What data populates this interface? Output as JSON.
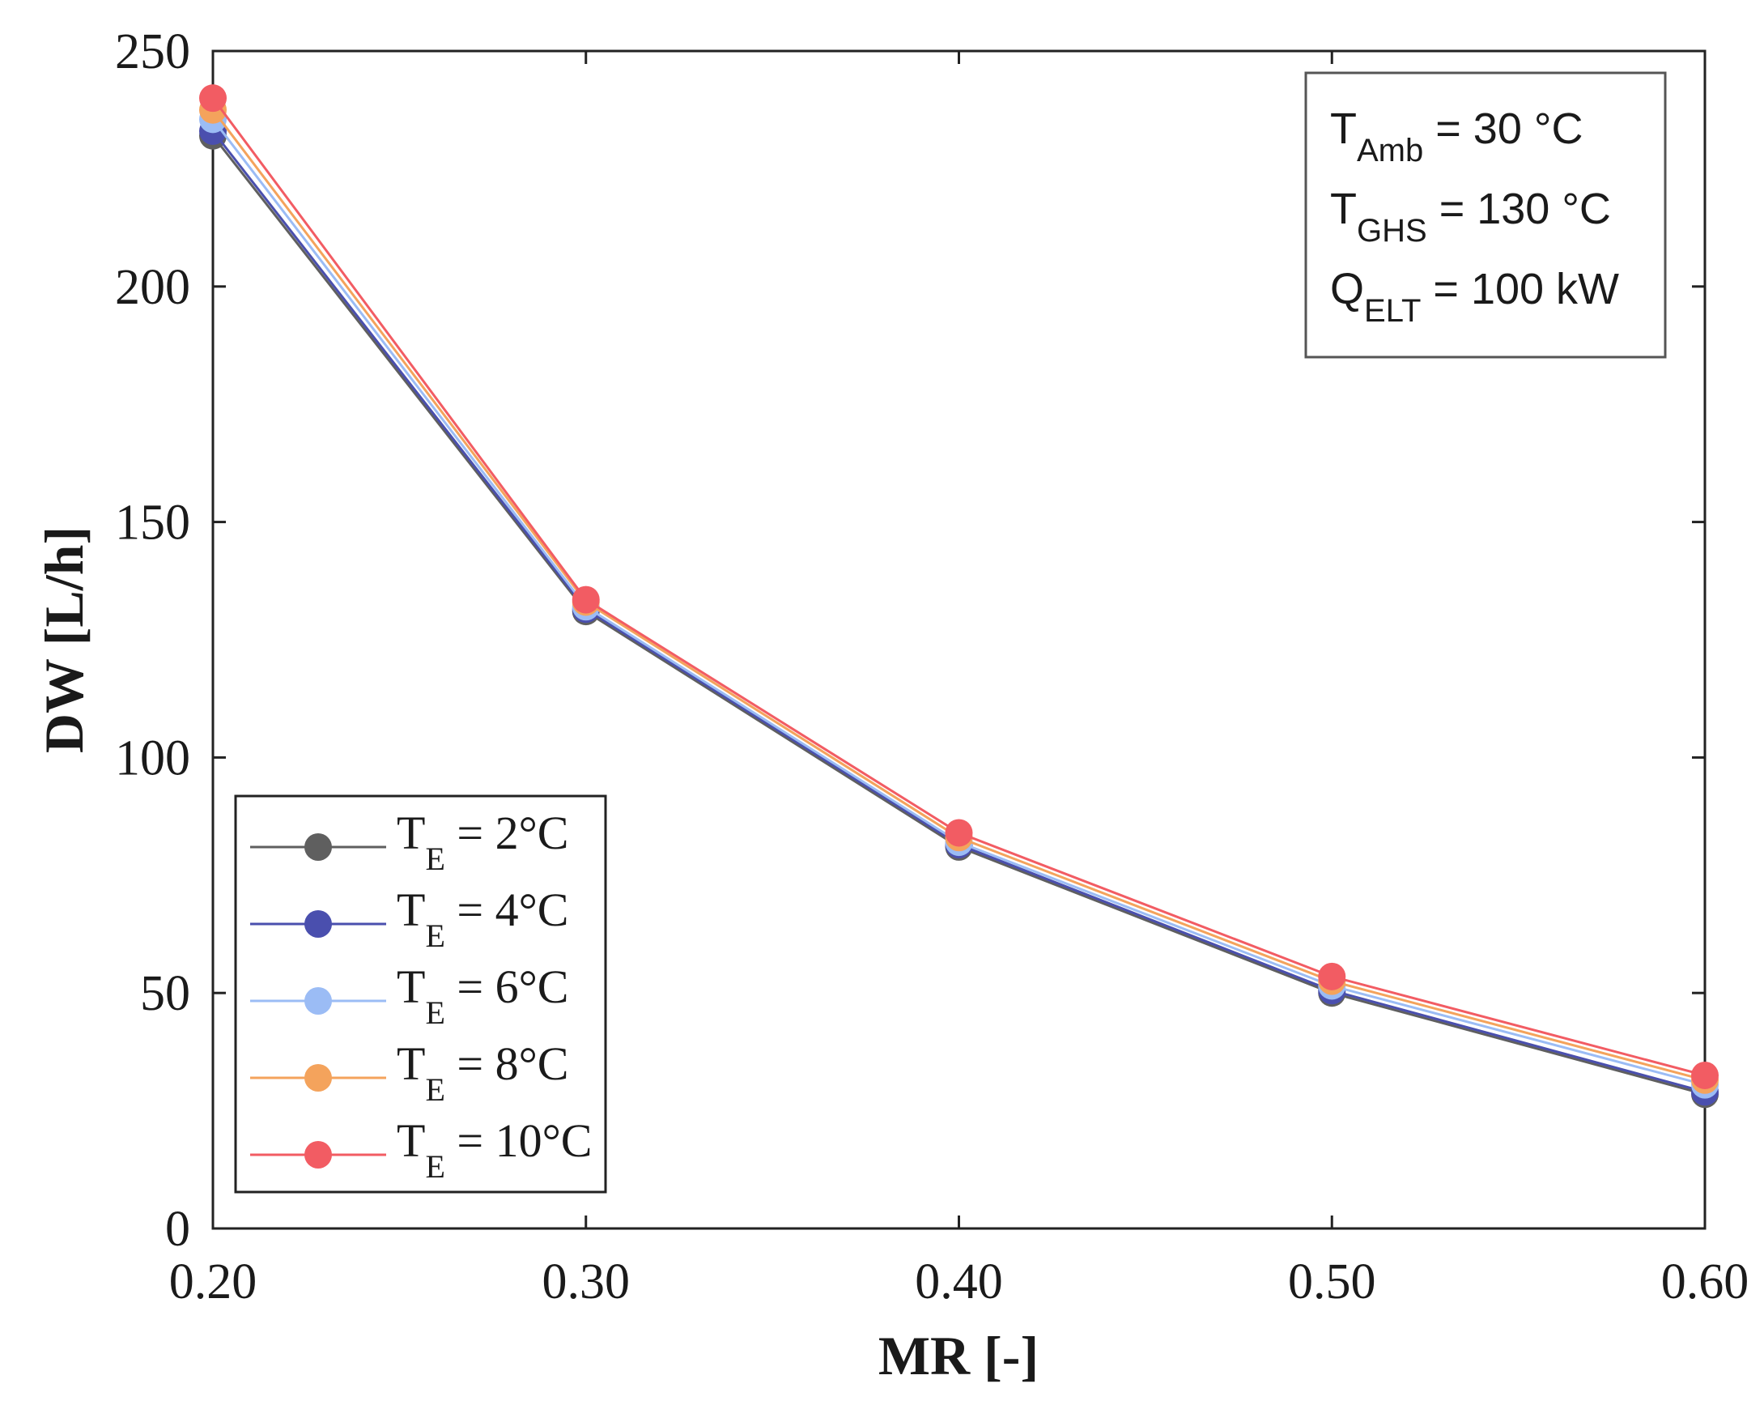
{
  "chart_data": {
    "type": "line",
    "xlabel": "MR [-]",
    "ylabel": "DW [L/h]",
    "x": [
      0.2,
      0.3,
      0.4,
      0.5,
      0.6
    ],
    "x_tick_labels": [
      "0.20",
      "0.30",
      "0.40",
      "0.50",
      "0.60"
    ],
    "xlim": [
      0.2,
      0.6
    ],
    "y_ticks": [
      0,
      50,
      100,
      150,
      200,
      250
    ],
    "y_tick_labels": [
      "0",
      "50",
      "100",
      "150",
      "200",
      "250"
    ],
    "ylim": [
      0,
      250
    ],
    "grid": false,
    "legend_position": "bottom-left",
    "series": [
      {
        "name": "TE = 2°C",
        "label_main": "T",
        "label_sub": "E",
        "label_rest": " = 2°C",
        "color": "#5f5f5f",
        "values": [
          232,
          131,
          81,
          50,
          28.5
        ]
      },
      {
        "name": "TE = 4°C",
        "label_main": "T",
        "label_sub": "E",
        "label_rest": " = 4°C",
        "color": "#4a4fae",
        "values": [
          233,
          131.5,
          81.5,
          50.5,
          29
        ]
      },
      {
        "name": "TE = 6°C",
        "label_main": "T",
        "label_sub": "E",
        "label_rest": " = 6°C",
        "color": "#9bbcf5",
        "values": [
          235.5,
          132,
          82,
          51.5,
          30.5
        ]
      },
      {
        "name": "TE = 8°C",
        "label_main": "T",
        "label_sub": "E",
        "label_rest": " = 8°C",
        "color": "#f4a35c",
        "values": [
          237.5,
          133,
          83,
          52.5,
          31.5
        ]
      },
      {
        "name": "TE = 10°C",
        "label_main": "T",
        "label_sub": "E",
        "label_rest": " = 10°C",
        "color": "#f25c63",
        "values": [
          240,
          133.5,
          84,
          53.5,
          32.5
        ]
      }
    ],
    "annotation": [
      {
        "main": "T",
        "sub": "Amb",
        "rest": " = 30 °C"
      },
      {
        "main": "T",
        "sub": "GHS",
        "rest": " = 130 °C"
      },
      {
        "main": "Q",
        "sub": "ELT",
        "rest": " = 100 kW"
      }
    ]
  }
}
